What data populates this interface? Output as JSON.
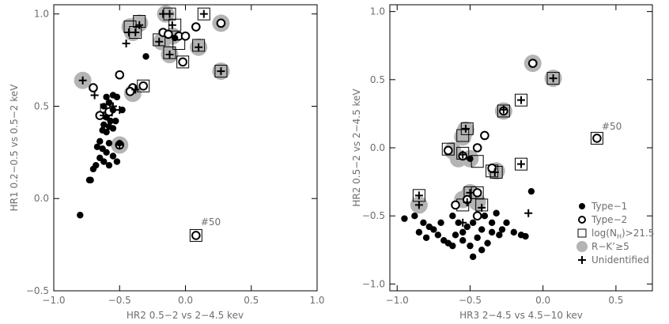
{
  "chart_data": [
    {
      "type": "scatter",
      "xlabel": "HR2 0.5−2 vs 2−4.5 kev",
      "ylabel": "HR1 0.2−0.5 vs 0.5−2 keV",
      "xlim": [
        -1.0,
        1.0
      ],
      "ylim": [
        -0.5,
        1.05
      ],
      "xticks": [
        -1.0,
        -0.5,
        0.0,
        0.5,
        1.0
      ],
      "yticks": [
        -0.5,
        0.0,
        0.5,
        1.0
      ],
      "xtick_labels": [
        "−1.0",
        "−0.5",
        "0.0",
        "0.5",
        "1.0"
      ],
      "ytick_labels": [
        "−0.5",
        "0.0",
        "0.5",
        "1.0"
      ],
      "annotations": [
        {
          "text": "#50",
          "x": 0.08,
          "y": -0.17
        }
      ],
      "markers": {
        "gray": [
          [
            -0.15,
            1.0
          ],
          [
            -0.35,
            0.95
          ],
          [
            0.27,
            0.95
          ],
          [
            -0.42,
            0.93
          ],
          [
            -0.4,
            0.9
          ],
          [
            -0.1,
            0.88
          ],
          [
            -0.18,
            0.85
          ],
          [
            0.1,
            0.82
          ],
          [
            -0.12,
            0.78
          ],
          [
            0.27,
            0.69
          ],
          [
            -0.78,
            0.64
          ],
          [
            -0.4,
            0.57
          ],
          [
            -0.5,
            0.29
          ]
        ],
        "box": [
          [
            -0.12,
            1.0
          ],
          [
            0.14,
            1.0
          ],
          [
            -0.35,
            0.96
          ],
          [
            -0.42,
            0.93
          ],
          [
            -0.08,
            0.94
          ],
          [
            -0.38,
            0.9
          ],
          [
            -0.2,
            0.86
          ],
          [
            -0.05,
            0.84
          ],
          [
            0.1,
            0.83
          ],
          [
            -0.12,
            0.79
          ],
          [
            0.27,
            0.69
          ],
          [
            -0.02,
            0.74
          ],
          [
            -0.32,
            0.61
          ],
          [
            -0.6,
            0.48
          ],
          [
            0.08,
            -0.2
          ]
        ],
        "circle": [
          [
            0.27,
            0.95
          ],
          [
            -0.17,
            0.9
          ],
          [
            0.08,
            0.93
          ],
          [
            -0.05,
            0.88
          ],
          [
            -0.13,
            0.89
          ],
          [
            0.0,
            0.88
          ],
          [
            -0.02,
            0.74
          ],
          [
            -0.5,
            0.67
          ],
          [
            -0.4,
            0.6
          ],
          [
            -0.42,
            0.58
          ],
          [
            -0.7,
            0.6
          ],
          [
            -0.32,
            0.61
          ],
          [
            -0.65,
            0.45
          ],
          [
            -0.58,
            0.47
          ],
          [
            -0.5,
            0.29
          ],
          [
            0.08,
            -0.2
          ]
        ],
        "plus": [
          [
            -0.17,
            1.0
          ],
          [
            -0.12,
            1.0
          ],
          [
            0.14,
            1.0
          ],
          [
            -0.35,
            0.94
          ],
          [
            -0.38,
            0.9
          ],
          [
            -0.43,
            0.9
          ],
          [
            -0.1,
            0.94
          ],
          [
            -0.45,
            0.84
          ],
          [
            -0.2,
            0.85
          ],
          [
            0.1,
            0.82
          ],
          [
            -0.12,
            0.78
          ],
          [
            0.27,
            0.69
          ],
          [
            -0.78,
            0.64
          ],
          [
            -0.69,
            0.56
          ],
          [
            -0.38,
            0.59
          ],
          [
            -0.55,
            0.5
          ],
          [
            -0.5,
            0.48
          ],
          [
            -0.62,
            0.45
          ],
          [
            -0.5,
            0.29
          ]
        ],
        "filled": [
          [
            -0.08,
            0.87
          ],
          [
            -0.3,
            0.77
          ],
          [
            -0.55,
            0.56
          ],
          [
            -0.6,
            0.55
          ],
          [
            -0.52,
            0.55
          ],
          [
            -0.58,
            0.52
          ],
          [
            -0.62,
            0.5
          ],
          [
            -0.55,
            0.48
          ],
          [
            -0.48,
            0.48
          ],
          [
            -0.6,
            0.44
          ],
          [
            -0.57,
            0.42
          ],
          [
            -0.53,
            0.42
          ],
          [
            -0.62,
            0.4
          ],
          [
            -0.58,
            0.39
          ],
          [
            -0.55,
            0.38
          ],
          [
            -0.63,
            0.37
          ],
          [
            -0.6,
            0.36
          ],
          [
            -0.65,
            0.31
          ],
          [
            -0.58,
            0.3
          ],
          [
            -0.63,
            0.27
          ],
          [
            -0.67,
            0.28
          ],
          [
            -0.6,
            0.25
          ],
          [
            -0.55,
            0.23
          ],
          [
            -0.65,
            0.22
          ],
          [
            -0.62,
            0.2
          ],
          [
            -0.68,
            0.18
          ],
          [
            -0.52,
            0.2
          ],
          [
            -0.7,
            0.16
          ],
          [
            -0.58,
            0.18
          ],
          [
            -0.72,
            0.1
          ],
          [
            -0.73,
            0.1
          ],
          [
            -0.8,
            -0.09
          ],
          [
            -0.5,
            0.3
          ]
        ]
      }
    },
    {
      "type": "scatter",
      "xlabel": "HR3 2−4.5 vs 4.5−10 kev",
      "ylabel": "HR2 0.5−2 vs 2−4.5 keV",
      "xlim": [
        -1.05,
        0.75
      ],
      "ylim": [
        -1.05,
        1.05
      ],
      "xticks": [
        -1.0,
        -0.5,
        0.0,
        0.5
      ],
      "yticks": [
        -1.0,
        -0.5,
        0.0,
        0.5,
        1.0
      ],
      "xtick_labels": [
        "−1.0",
        "−0.5",
        "0.0",
        "0.5"
      ],
      "ytick_labels": [
        "−1.0",
        "−0.5",
        "0.0",
        "0.5",
        "1.0"
      ],
      "annotations": [
        {
          "text": "#50",
          "x": 0.37,
          "y": 0.1
        }
      ],
      "legend": {
        "placement": "bottom-right",
        "entries": [
          {
            "marker": "filled",
            "label": "Type−1"
          },
          {
            "marker": "circle",
            "label": "Type−2"
          },
          {
            "marker": "box",
            "label": "log(N",
            "sub": "H",
            "tail": ")>21.5"
          },
          {
            "marker": "gray",
            "label": "R−K’≥5"
          },
          {
            "marker": "plus",
            "label": "Unidentified"
          }
        ]
      },
      "markers": {
        "gray": [
          [
            -0.07,
            0.62
          ],
          [
            0.07,
            0.51
          ],
          [
            -0.27,
            0.27
          ],
          [
            -0.53,
            0.13
          ],
          [
            -0.55,
            0.08
          ],
          [
            -0.58,
            -0.08
          ],
          [
            -0.62,
            -0.02
          ],
          [
            -0.5,
            -0.08
          ],
          [
            -0.32,
            -0.17
          ],
          [
            -0.5,
            -0.33
          ],
          [
            -0.55,
            -0.38
          ],
          [
            -0.45,
            -0.4
          ],
          [
            -0.85,
            -0.42
          ]
        ],
        "box": [
          [
            0.07,
            0.51
          ],
          [
            -0.15,
            0.35
          ],
          [
            -0.27,
            0.27
          ],
          [
            -0.52,
            0.14
          ],
          [
            -0.55,
            0.09
          ],
          [
            -0.65,
            -0.01
          ],
          [
            -0.55,
            -0.04
          ],
          [
            -0.45,
            -0.1
          ],
          [
            -0.35,
            -0.17
          ],
          [
            -0.32,
            -0.18
          ],
          [
            -0.15,
            -0.12
          ],
          [
            -0.5,
            -0.33
          ],
          [
            -0.45,
            -0.33
          ],
          [
            -0.55,
            -0.42
          ],
          [
            -0.42,
            -0.42
          ],
          [
            -0.85,
            -0.35
          ],
          [
            0.37,
            0.07
          ]
        ],
        "circle": [
          [
            -0.07,
            0.62
          ],
          [
            -0.27,
            0.27
          ],
          [
            -0.4,
            0.09
          ],
          [
            -0.45,
            0.0
          ],
          [
            -0.65,
            -0.02
          ],
          [
            -0.55,
            -0.06
          ],
          [
            -0.35,
            -0.15
          ],
          [
            -0.45,
            -0.33
          ],
          [
            -0.52,
            -0.38
          ],
          [
            -0.6,
            -0.42
          ],
          [
            -0.45,
            -0.5
          ],
          [
            0.37,
            0.07
          ]
        ],
        "plus": [
          [
            0.07,
            0.51
          ],
          [
            -0.15,
            0.35
          ],
          [
            -0.27,
            0.28
          ],
          [
            -0.53,
            0.14
          ],
          [
            -0.55,
            -0.05
          ],
          [
            -0.5,
            -0.33
          ],
          [
            -0.33,
            -0.18
          ],
          [
            -0.15,
            -0.12
          ],
          [
            -0.52,
            -0.4
          ],
          [
            -0.42,
            -0.44
          ],
          [
            -0.85,
            -0.35
          ],
          [
            -0.85,
            -0.42
          ],
          [
            -0.1,
            -0.48
          ],
          [
            -0.55,
            -0.55
          ]
        ],
        "filled": [
          [
            -0.5,
            -0.08
          ],
          [
            -0.08,
            -0.32
          ],
          [
            -0.95,
            -0.52
          ],
          [
            -0.88,
            -0.5
          ],
          [
            -0.82,
            -0.55
          ],
          [
            -0.75,
            -0.6
          ],
          [
            -0.7,
            -0.55
          ],
          [
            -0.62,
            -0.5
          ],
          [
            -0.58,
            -0.55
          ],
          [
            -0.52,
            -0.58
          ],
          [
            -0.48,
            -0.55
          ],
          [
            -0.42,
            -0.6
          ],
          [
            -0.4,
            -0.5
          ],
          [
            -0.35,
            -0.55
          ],
          [
            -0.32,
            -0.48
          ],
          [
            -0.28,
            -0.6
          ],
          [
            -0.25,
            -0.55
          ],
          [
            -0.2,
            -0.62
          ],
          [
            -0.15,
            -0.64
          ],
          [
            -0.12,
            -0.65
          ],
          [
            -0.85,
            -0.62
          ],
          [
            -0.8,
            -0.66
          ],
          [
            -0.72,
            -0.64
          ],
          [
            -0.68,
            -0.68
          ],
          [
            -0.65,
            -0.7
          ],
          [
            -0.6,
            -0.64
          ],
          [
            -0.55,
            -0.68
          ],
          [
            -0.5,
            -0.72
          ],
          [
            -0.45,
            -0.66
          ],
          [
            -0.42,
            -0.75
          ],
          [
            -0.38,
            -0.7
          ],
          [
            -0.3,
            -0.64
          ],
          [
            -0.62,
            -0.72
          ],
          [
            -0.48,
            -0.8
          ],
          [
            -0.35,
            -0.62
          ],
          [
            -0.55,
            -0.62
          ],
          [
            -0.78,
            -0.58
          ]
        ]
      }
    }
  ]
}
